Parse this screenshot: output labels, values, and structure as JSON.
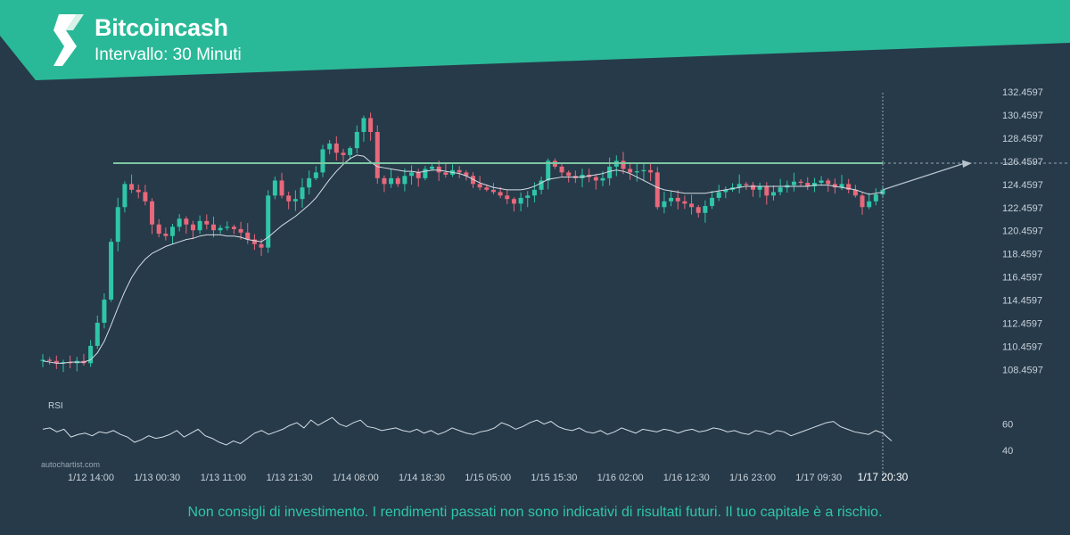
{
  "header": {
    "title": "Bitcoincash",
    "subtitle": "Intervallo: 30 Minuti"
  },
  "watermark": "autochartist.com",
  "disclaimer": "Non consigli di investimento. I rendimenti passati non sono indicativi di risultati futuri. Il tuo capitale è a rischio.",
  "colors": {
    "background": "#263a4a",
    "header": "#2ab998",
    "bull_candle": "#2fc6a7",
    "bear_candle": "#e8687a",
    "resistance": "#7ec7a3",
    "moving_average": "#d6dde3",
    "rsi_line": "#d6dde3",
    "axis_text": "#c9d1d8"
  },
  "chart_data": [
    {
      "type": "candlestick",
      "price_ticks": [
        "132.4597",
        "130.4597",
        "128.4597",
        "126.4597",
        "124.4597",
        "122.4597",
        "120.4597",
        "118.4597",
        "116.4597",
        "114.4597",
        "112.4597",
        "110.4597",
        "108.4597"
      ],
      "ylim": [
        107.1,
        132.7
      ],
      "x_tick_labels": [
        "1/12 14:00",
        "1/13 00:30",
        "1/13 11:00",
        "1/13 21:30",
        "1/14 08:00",
        "1/14 18:30",
        "1/15 05:00",
        "1/15 15:30",
        "1/16 02:00",
        "1/16 12:30",
        "1/16 23:00",
        "1/17 09:30",
        "1/17 20:30"
      ],
      "last_label": "1/17 20:30",
      "resistance_level": 126.3,
      "forecast_target": 126.3,
      "series": [
        {
          "name": "price",
          "values": [
            109.3,
            109.2,
            109.0,
            109.1,
            109.0,
            109.2,
            109.0,
            110.5,
            112.5,
            114.5,
            119.5,
            122.5,
            124.5,
            124.0,
            123.8,
            123.0,
            121.0,
            120.2,
            120.0,
            120.8,
            121.5,
            121.0,
            120.5,
            121.3,
            121.0,
            120.5,
            120.7,
            120.8,
            120.6,
            120.3,
            119.7,
            119.3,
            119.0,
            123.5,
            124.8,
            123.5,
            123.0,
            123.2,
            124.2,
            125.0,
            125.5,
            127.5,
            128.0,
            127.2,
            127.0,
            127.6,
            129.0,
            130.2,
            129.0,
            125.0,
            124.5,
            125.0,
            124.5,
            125.2,
            125.5,
            125.0,
            125.8,
            126.0,
            125.5,
            125.3,
            125.7,
            125.5,
            125.2,
            124.5,
            124.2,
            124.0,
            123.8,
            123.5,
            123.2,
            122.8,
            123.3,
            123.5,
            124.0,
            124.8,
            126.5,
            126.0,
            125.5,
            125.2,
            125.0,
            125.3,
            125.1,
            124.8,
            125.0,
            126.0,
            126.5,
            125.8,
            125.5,
            125.6,
            125.7,
            125.5,
            122.5,
            123.0,
            123.3,
            123.0,
            122.8,
            122.5,
            122.0,
            122.6,
            123.3,
            123.8,
            124.0,
            124.2,
            124.5,
            124.4,
            124.0,
            124.3,
            123.5,
            123.8,
            124.2,
            124.4,
            124.7,
            124.6,
            124.3,
            124.6,
            124.8,
            124.5,
            124.2,
            124.5,
            124.0,
            123.5,
            122.5,
            123.0,
            123.6,
            124.0
          ]
        },
        {
          "name": "moving_average",
          "values": [
            109.2,
            109.1,
            109.0,
            109.0,
            109.1,
            109.1,
            109.1,
            109.3,
            109.9,
            110.9,
            112.3,
            113.8,
            115.2,
            116.4,
            117.3,
            118.0,
            118.5,
            118.8,
            119.1,
            119.3,
            119.5,
            119.7,
            119.8,
            120.0,
            120.1,
            120.1,
            120.1,
            120.0,
            120.0,
            119.9,
            119.7,
            119.6,
            119.5,
            119.9,
            120.4,
            120.9,
            121.3,
            121.7,
            122.2,
            122.7,
            123.3,
            124.1,
            124.9,
            125.6,
            126.2,
            126.7,
            127.0,
            126.9,
            126.4,
            126.0,
            125.9,
            125.8,
            125.7,
            125.6,
            125.6,
            125.5,
            125.6,
            125.7,
            125.7,
            125.6,
            125.5,
            125.4,
            125.2,
            124.9,
            124.6,
            124.4,
            124.2,
            124.1,
            124.0,
            124.0,
            124.0,
            124.1,
            124.3,
            124.6,
            124.9,
            125.0,
            125.1,
            125.1,
            125.1,
            125.1,
            125.2,
            125.3,
            125.4,
            125.6,
            125.7,
            125.6,
            125.4,
            125.1,
            124.8,
            124.5,
            124.2,
            124.0,
            123.9,
            123.8,
            123.7,
            123.7,
            123.7,
            123.7,
            123.8,
            123.9,
            124.0,
            124.1,
            124.2,
            124.3,
            124.3,
            124.3,
            124.3,
            124.3,
            124.3,
            124.3,
            124.3,
            124.3,
            124.3,
            124.4,
            124.4,
            124.4,
            124.3,
            124.2,
            124.1,
            124.0,
            123.8,
            123.6,
            123.7,
            123.8
          ]
        }
      ]
    },
    {
      "type": "line",
      "panel_label": "RSI",
      "rsi_ticks": [
        "60",
        "40"
      ],
      "ylim": [
        33,
        72
      ],
      "series": [
        {
          "name": "RSI",
          "values": [
            56,
            57,
            54,
            56,
            50,
            52,
            53,
            51,
            54,
            53,
            55,
            52,
            50,
            46,
            48,
            51,
            49,
            50,
            52,
            55,
            50,
            53,
            56,
            51,
            49,
            46,
            44,
            47,
            45,
            49,
            53,
            55,
            52,
            54,
            56,
            59,
            61,
            57,
            63,
            59,
            62,
            65,
            60,
            58,
            61,
            63,
            58,
            57,
            55,
            56,
            57,
            55,
            54,
            56,
            53,
            55,
            52,
            54,
            57,
            55,
            53,
            52,
            54,
            55,
            57,
            61,
            59,
            56,
            58,
            61,
            63,
            60,
            62,
            58,
            56,
            55,
            57,
            54,
            53,
            55,
            52,
            54,
            57,
            55,
            53,
            56,
            55,
            54,
            56,
            55,
            53,
            55,
            56,
            54,
            55,
            57,
            56,
            54,
            55,
            53,
            52,
            55,
            54,
            52,
            55,
            54,
            51,
            53,
            55,
            57,
            59,
            61,
            62,
            58,
            56,
            54,
            53,
            52,
            55,
            53
          ]
        }
      ]
    }
  ]
}
